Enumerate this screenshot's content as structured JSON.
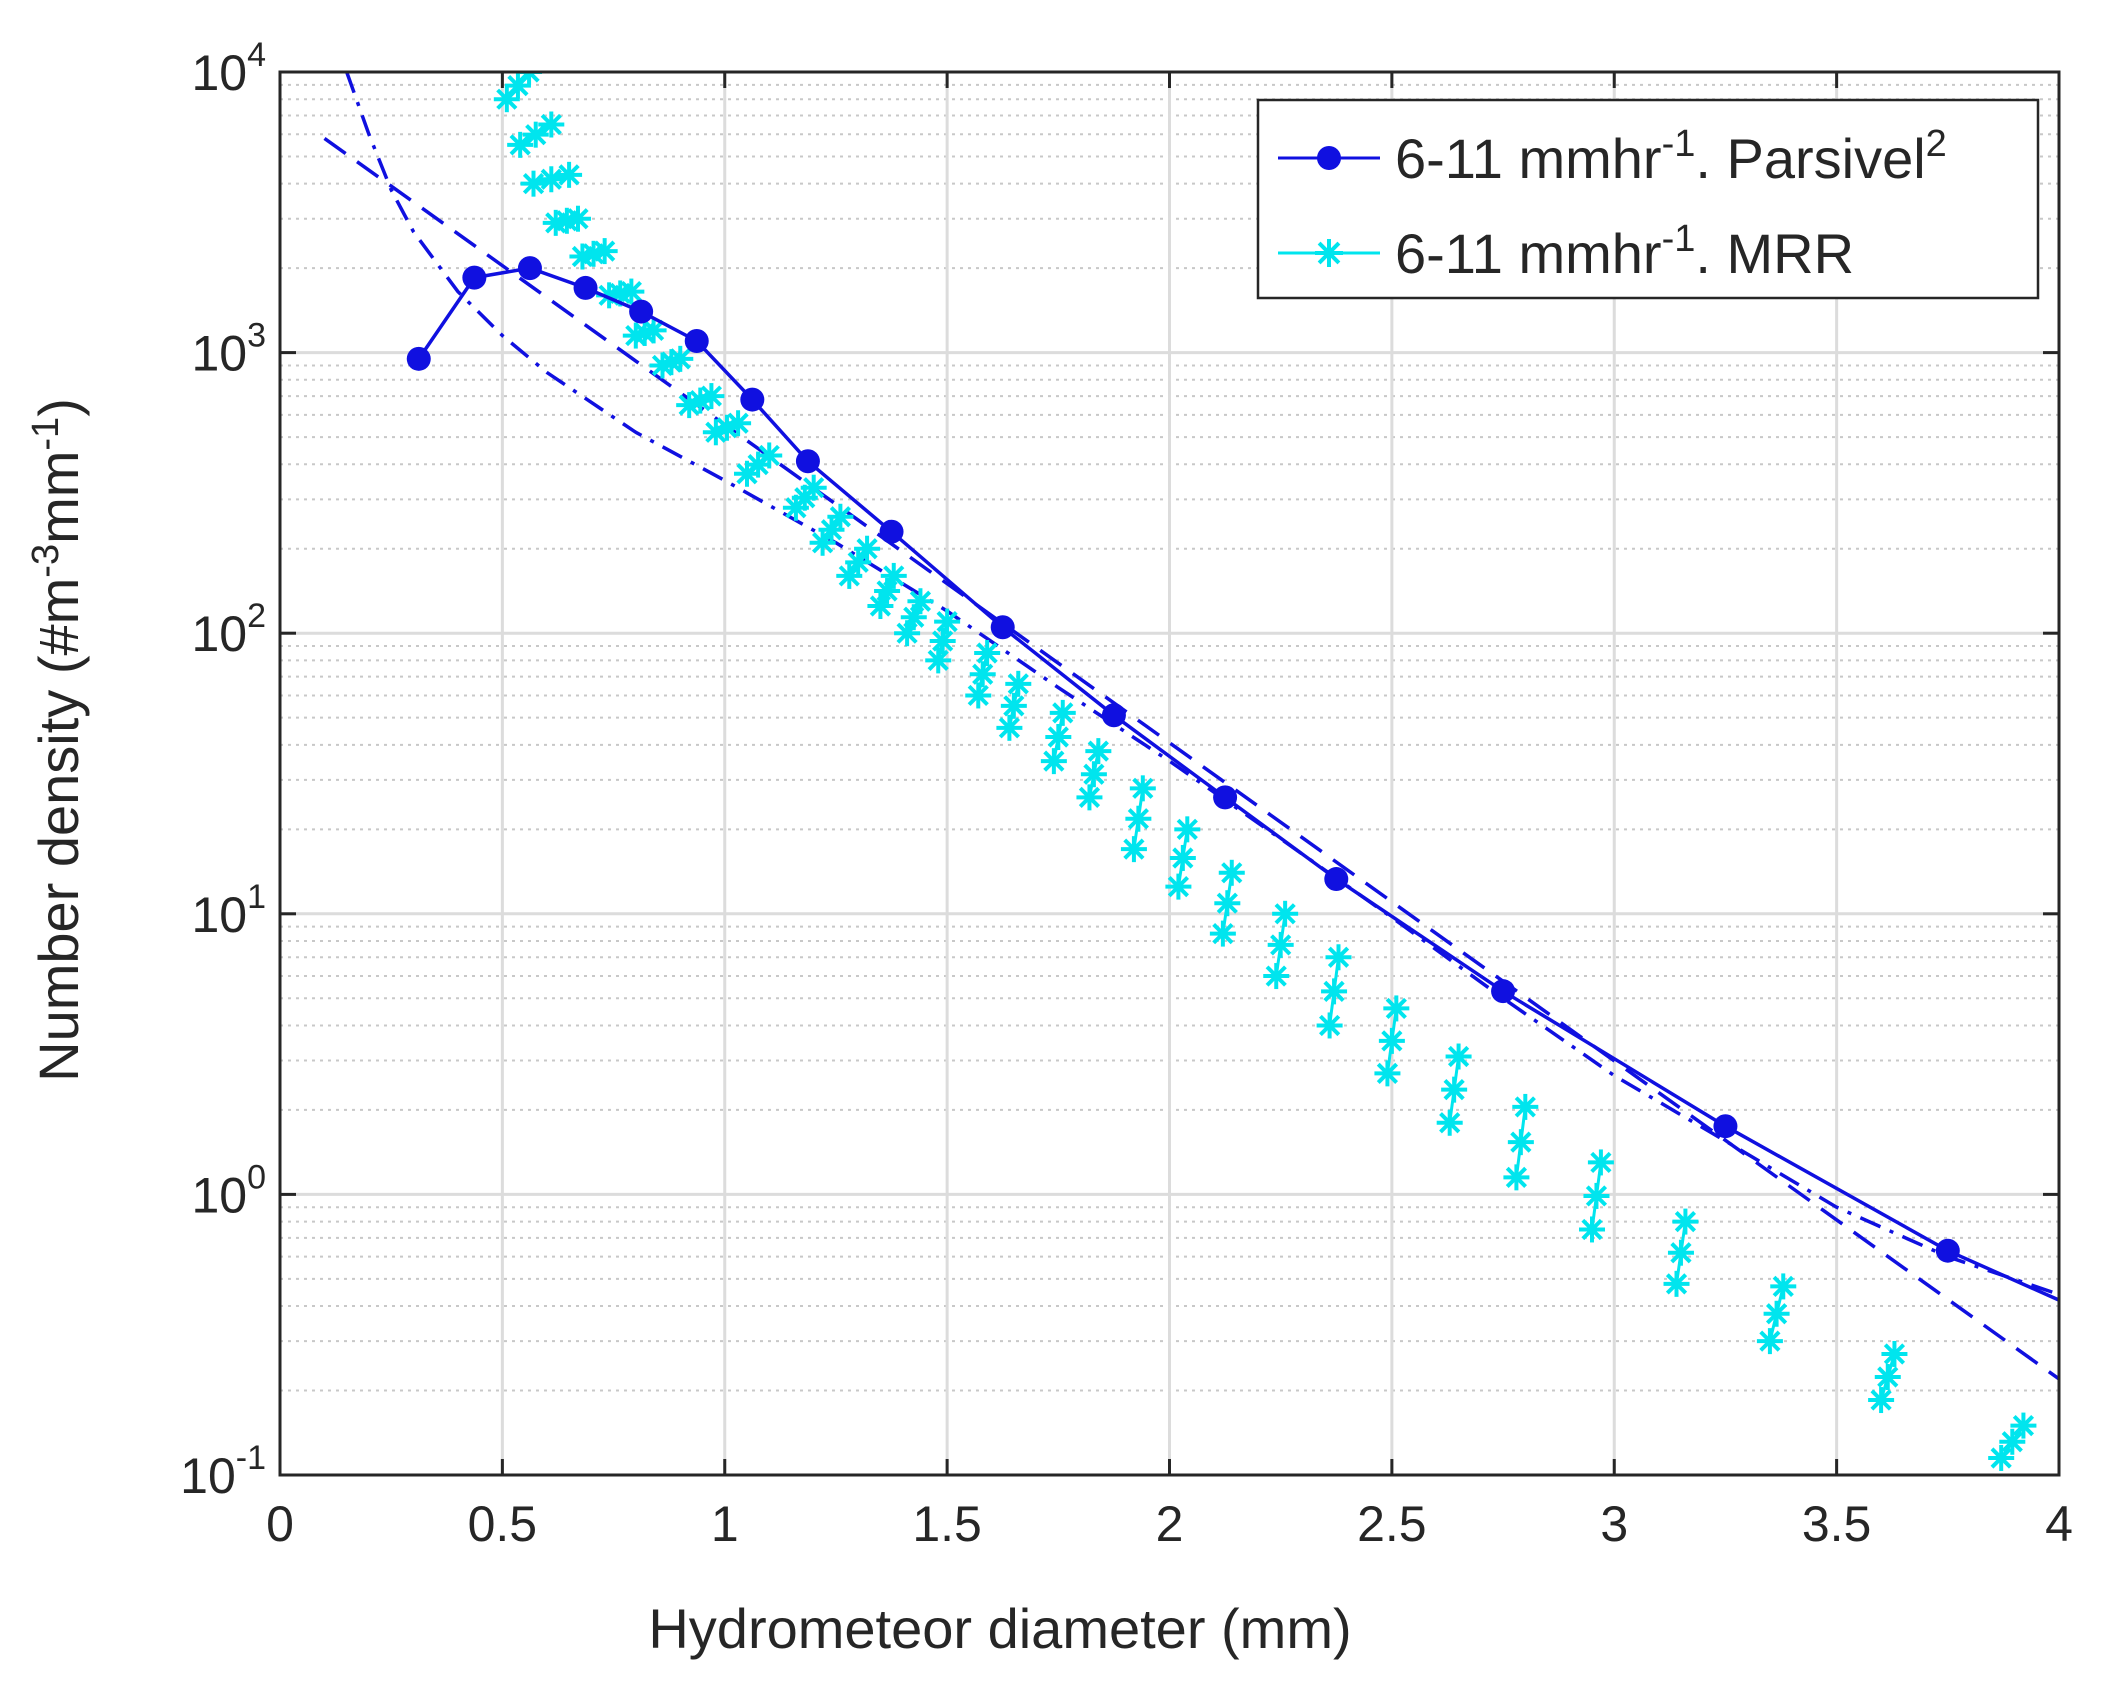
{
  "chart_data": {
    "type": "line",
    "title": "",
    "xlabel": "Hydrometeor diameter (mm)",
    "ylabel": {
      "base": "Number density (#m",
      "exp1": "-3",
      "mid": "mm",
      "exp2": "-1",
      "end": ")"
    },
    "xscale": "linear",
    "yscale": "log",
    "xlim": [
      0,
      4
    ],
    "ylim": [
      0.1,
      10000
    ],
    "grid": true,
    "xticks": [
      {
        "v": 0,
        "label": "0"
      },
      {
        "v": 0.5,
        "label": "0.5"
      },
      {
        "v": 1,
        "label": "1"
      },
      {
        "v": 1.5,
        "label": "1.5"
      },
      {
        "v": 2,
        "label": "2"
      },
      {
        "v": 2.5,
        "label": "2.5"
      },
      {
        "v": 3,
        "label": "3"
      },
      {
        "v": 3.5,
        "label": "3.5"
      },
      {
        "v": 4,
        "label": "4"
      }
    ],
    "yticks": [
      {
        "v": 0.1,
        "base": "10",
        "exp": "-1"
      },
      {
        "v": 1,
        "base": "10",
        "exp": "0"
      },
      {
        "v": 10,
        "base": "10",
        "exp": "1"
      },
      {
        "v": 100,
        "base": "10",
        "exp": "2"
      },
      {
        "v": 1000,
        "base": "10",
        "exp": "3"
      },
      {
        "v": 10000,
        "base": "10",
        "exp": "4"
      }
    ],
    "legend": {
      "position": "top-right",
      "entries": [
        {
          "series": "parsivel",
          "text": "6-11 mmhr",
          "exp": "-1",
          "suffix": ". Parsivel",
          "suffix_exp": "2"
        },
        {
          "series": "mrr",
          "text": "6-11 mmhr",
          "exp": "-1",
          "suffix": ". MRR",
          "suffix_exp": ""
        }
      ]
    },
    "series": [
      {
        "id": "parsivel",
        "name": "6-11 mmhr-1. Parsivel2",
        "color": "#1010e0",
        "style": "solid",
        "marker": "circle",
        "x": [
          0.312,
          0.437,
          0.562,
          0.687,
          0.812,
          0.937,
          1.062,
          1.187,
          1.375,
          1.625,
          1.875,
          2.125,
          2.375,
          2.75,
          3.25,
          3.75,
          4.0
        ],
        "y": [
          950,
          1850,
          2000,
          1700,
          1400,
          1100,
          680,
          410,
          230,
          105,
          51,
          26,
          13.3,
          5.3,
          1.75,
          0.63,
          0.42
        ]
      },
      {
        "id": "fit_dashed",
        "name": "fit (dashed)",
        "color": "#1010e0",
        "style": "dashed",
        "marker": "none",
        "x": [
          0.1,
          4.0
        ],
        "y": [
          5800,
          0.22
        ]
      },
      {
        "id": "fit_dashdot",
        "name": "fit (dash-dot)",
        "color": "#1010e0",
        "style": "dashdot",
        "marker": "none",
        "x": [
          0.15,
          0.2,
          0.25,
          0.3,
          0.4,
          0.5,
          0.6,
          0.8,
          1.0,
          1.25,
          1.5,
          1.75,
          2.0,
          2.25,
          2.5,
          2.75,
          3.0,
          3.25,
          3.5,
          3.75,
          4.0
        ],
        "y": [
          10000,
          6000,
          3800,
          2700,
          1650,
          1150,
          850,
          520,
          350,
          210,
          120,
          64,
          35,
          18.5,
          9.7,
          5.0,
          2.65,
          1.55,
          0.9,
          0.6,
          0.44
        ]
      },
      {
        "id": "mrr",
        "name": "6-11 mmhr-1. MRR",
        "color": "#00e5ee",
        "style": "solid-segments",
        "marker": "asterisk",
        "segments": [
          {
            "x": [
              0.51,
              0.56
            ],
            "y": [
              8000,
              10000
            ]
          },
          {
            "x": [
              0.54,
              0.61
            ],
            "y": [
              5500,
              6500
            ]
          },
          {
            "x": [
              0.57,
              0.65
            ],
            "y": [
              4000,
              4300
            ]
          },
          {
            "x": [
              0.62,
              0.67
            ],
            "y": [
              2900,
              3000
            ]
          },
          {
            "x": [
              0.68,
              0.73
            ],
            "y": [
              2200,
              2300
            ]
          },
          {
            "x": [
              0.74,
              0.79
            ],
            "y": [
              1600,
              1650
            ]
          },
          {
            "x": [
              0.8,
              0.84
            ],
            "y": [
              1150,
              1200
            ]
          },
          {
            "x": [
              0.86,
              0.9
            ],
            "y": [
              900,
              950
            ]
          },
          {
            "x": [
              0.92,
              0.97
            ],
            "y": [
              650,
              700
            ]
          },
          {
            "x": [
              0.98,
              1.03
            ],
            "y": [
              520,
              560
            ]
          },
          {
            "x": [
              1.05,
              1.1
            ],
            "y": [
              370,
              430
            ]
          },
          {
            "x": [
              1.16,
              1.2
            ],
            "y": [
              280,
              330
            ]
          },
          {
            "x": [
              1.22,
              1.26
            ],
            "y": [
              210,
              260
            ]
          },
          {
            "x": [
              1.28,
              1.32
            ],
            "y": [
              160,
              200
            ]
          },
          {
            "x": [
              1.35,
              1.38
            ],
            "y": [
              125,
              160
            ]
          },
          {
            "x": [
              1.41,
              1.44
            ],
            "y": [
              100,
              130
            ]
          },
          {
            "x": [
              1.48,
              1.5
            ],
            "y": [
              80,
              110
            ]
          },
          {
            "x": [
              1.57,
              1.59
            ],
            "y": [
              60,
              85
            ]
          },
          {
            "x": [
              1.64,
              1.66
            ],
            "y": [
              46,
              66
            ]
          },
          {
            "x": [
              1.74,
              1.76
            ],
            "y": [
              35,
              52
            ]
          },
          {
            "x": [
              1.82,
              1.84
            ],
            "y": [
              26,
              38
            ]
          },
          {
            "x": [
              1.92,
              1.94
            ],
            "y": [
              17,
              28
            ]
          },
          {
            "x": [
              2.02,
              2.04
            ],
            "y": [
              12.5,
              20
            ]
          },
          {
            "x": [
              2.12,
              2.14
            ],
            "y": [
              8.5,
              14
            ]
          },
          {
            "x": [
              2.24,
              2.26
            ],
            "y": [
              6,
              10
            ]
          },
          {
            "x": [
              2.36,
              2.38
            ],
            "y": [
              4,
              7
            ]
          },
          {
            "x": [
              2.49,
              2.51
            ],
            "y": [
              2.7,
              4.6
            ]
          },
          {
            "x": [
              2.63,
              2.65
            ],
            "y": [
              1.8,
              3.1
            ]
          },
          {
            "x": [
              2.78,
              2.8
            ],
            "y": [
              1.15,
              2.05
            ]
          },
          {
            "x": [
              2.95,
              2.97
            ],
            "y": [
              0.75,
              1.3
            ]
          },
          {
            "x": [
              3.14,
              3.16
            ],
            "y": [
              0.48,
              0.8
            ]
          },
          {
            "x": [
              3.35,
              3.38
            ],
            "y": [
              0.3,
              0.47
            ]
          },
          {
            "x": [
              3.6,
              3.63
            ],
            "y": [
              0.185,
              0.27
            ]
          },
          {
            "x": [
              3.87,
              3.92
            ],
            "y": [
              0.115,
              0.15
            ]
          }
        ]
      }
    ]
  }
}
